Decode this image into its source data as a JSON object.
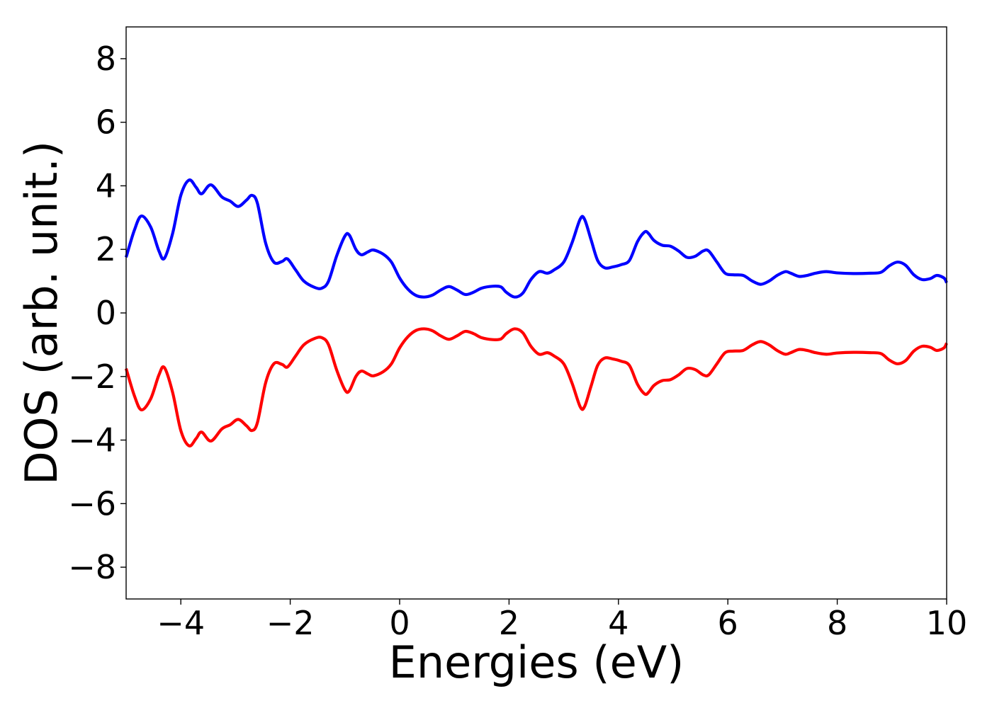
{
  "chart_data": {
    "type": "line",
    "title": "",
    "xlabel": "Energies (eV)",
    "ylabel": "DOS (arb. unit.)",
    "xlim": [
      -5,
      10
    ],
    "ylim": [
      -9,
      9
    ],
    "grid": false,
    "legend": "none",
    "x_ticks": [
      -4,
      -2,
      0,
      2,
      4,
      6,
      8,
      10
    ],
    "y_ticks": [
      -8,
      -6,
      -4,
      -2,
      0,
      2,
      4,
      6,
      8
    ],
    "x_tick_labels": [
      "−4",
      "−2",
      "0",
      "2",
      "4",
      "6",
      "8",
      "10"
    ],
    "y_tick_labels": [
      "−8",
      "−6",
      "−4",
      "−2",
      "0",
      "2",
      "4",
      "6",
      "8"
    ],
    "series": [
      {
        "color": "#0000ff",
        "points": [
          [
            -5.0,
            1.75
          ],
          [
            -4.85,
            2.6
          ],
          [
            -4.72,
            3.05
          ],
          [
            -4.55,
            2.7
          ],
          [
            -4.4,
            1.95
          ],
          [
            -4.3,
            1.72
          ],
          [
            -4.15,
            2.5
          ],
          [
            -4.0,
            3.7
          ],
          [
            -3.85,
            4.18
          ],
          [
            -3.72,
            3.95
          ],
          [
            -3.62,
            3.75
          ],
          [
            -3.45,
            4.03
          ],
          [
            -3.25,
            3.65
          ],
          [
            -3.1,
            3.52
          ],
          [
            -2.95,
            3.35
          ],
          [
            -2.8,
            3.55
          ],
          [
            -2.7,
            3.7
          ],
          [
            -2.6,
            3.45
          ],
          [
            -2.45,
            2.2
          ],
          [
            -2.3,
            1.6
          ],
          [
            -2.15,
            1.62
          ],
          [
            -2.05,
            1.7
          ],
          [
            -1.9,
            1.35
          ],
          [
            -1.75,
            1.0
          ],
          [
            -1.55,
            0.8
          ],
          [
            -1.42,
            0.78
          ],
          [
            -1.3,
            1.0
          ],
          [
            -1.15,
            1.8
          ],
          [
            -1.0,
            2.42
          ],
          [
            -0.92,
            2.45
          ],
          [
            -0.8,
            2.0
          ],
          [
            -0.7,
            1.83
          ],
          [
            -0.58,
            1.92
          ],
          [
            -0.48,
            1.98
          ],
          [
            -0.3,
            1.85
          ],
          [
            -0.15,
            1.6
          ],
          [
            0.0,
            1.1
          ],
          [
            0.15,
            0.75
          ],
          [
            0.3,
            0.55
          ],
          [
            0.45,
            0.5
          ],
          [
            0.6,
            0.56
          ],
          [
            0.75,
            0.72
          ],
          [
            0.9,
            0.83
          ],
          [
            1.05,
            0.72
          ],
          [
            1.2,
            0.58
          ],
          [
            1.35,
            0.65
          ],
          [
            1.5,
            0.78
          ],
          [
            1.7,
            0.84
          ],
          [
            1.85,
            0.82
          ],
          [
            1.95,
            0.65
          ],
          [
            2.1,
            0.5
          ],
          [
            2.25,
            0.62
          ],
          [
            2.4,
            1.05
          ],
          [
            2.55,
            1.3
          ],
          [
            2.7,
            1.25
          ],
          [
            2.82,
            1.35
          ],
          [
            3.0,
            1.6
          ],
          [
            3.15,
            2.2
          ],
          [
            3.3,
            2.95
          ],
          [
            3.38,
            2.95
          ],
          [
            3.5,
            2.3
          ],
          [
            3.62,
            1.65
          ],
          [
            3.75,
            1.42
          ],
          [
            3.9,
            1.45
          ],
          [
            4.05,
            1.52
          ],
          [
            4.2,
            1.65
          ],
          [
            4.35,
            2.25
          ],
          [
            4.48,
            2.55
          ],
          [
            4.55,
            2.5
          ],
          [
            4.65,
            2.28
          ],
          [
            4.8,
            2.13
          ],
          [
            4.95,
            2.1
          ],
          [
            5.1,
            1.95
          ],
          [
            5.25,
            1.75
          ],
          [
            5.4,
            1.78
          ],
          [
            5.55,
            1.95
          ],
          [
            5.65,
            1.95
          ],
          [
            5.8,
            1.6
          ],
          [
            5.95,
            1.25
          ],
          [
            6.1,
            1.2
          ],
          [
            6.28,
            1.18
          ],
          [
            6.45,
            1.0
          ],
          [
            6.6,
            0.9
          ],
          [
            6.75,
            1.0
          ],
          [
            6.9,
            1.18
          ],
          [
            7.05,
            1.3
          ],
          [
            7.15,
            1.25
          ],
          [
            7.3,
            1.15
          ],
          [
            7.45,
            1.18
          ],
          [
            7.6,
            1.25
          ],
          [
            7.8,
            1.3
          ],
          [
            8.0,
            1.26
          ],
          [
            8.3,
            1.24
          ],
          [
            8.6,
            1.25
          ],
          [
            8.8,
            1.28
          ],
          [
            8.95,
            1.48
          ],
          [
            9.1,
            1.6
          ],
          [
            9.25,
            1.5
          ],
          [
            9.4,
            1.2
          ],
          [
            9.55,
            1.05
          ],
          [
            9.7,
            1.08
          ],
          [
            9.82,
            1.18
          ],
          [
            9.95,
            1.1
          ],
          [
            10.0,
            0.95
          ]
        ]
      },
      {
        "color": "#ff0000",
        "mirror_of": 0
      }
    ]
  }
}
